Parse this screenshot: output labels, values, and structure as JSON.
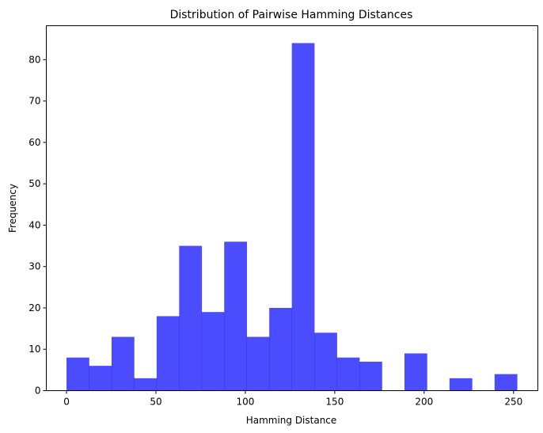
{
  "chart_data": {
    "type": "bar",
    "title": "Distribution of Pairwise Hamming Distances",
    "xlabel": "Hamming Distance",
    "ylabel": "Frequency",
    "xlim": [
      -11.3,
      263.6
    ],
    "ylim": [
      0,
      88.2
    ],
    "xticks": [
      0,
      50,
      100,
      150,
      200,
      250
    ],
    "yticks": [
      0,
      10,
      20,
      30,
      40,
      50,
      60,
      70,
      80
    ],
    "bin_edges": [
      0,
      12.6,
      25.2,
      37.8,
      50.4,
      63.0,
      75.6,
      88.2,
      100.8,
      113.4,
      126.0,
      138.6,
      151.2,
      163.8,
      176.4,
      189.0,
      201.6,
      214.2,
      226.8,
      239.4,
      252.0
    ],
    "values": [
      8,
      6,
      13,
      3,
      18,
      35,
      19,
      36,
      13,
      20,
      84,
      14,
      8,
      7,
      0,
      9,
      0,
      3,
      0,
      4
    ],
    "bar_color": "#0000ff",
    "bar_alpha": 0.7,
    "grid": false
  }
}
